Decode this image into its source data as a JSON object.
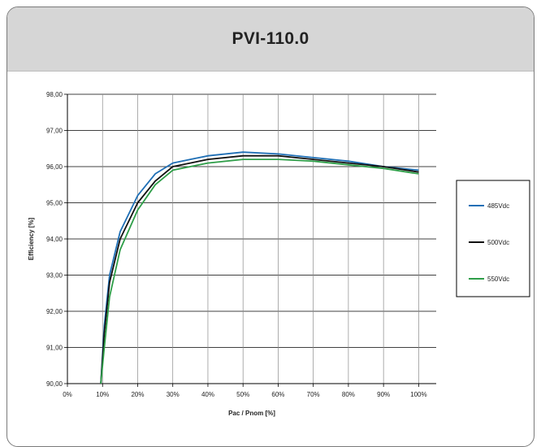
{
  "header": {
    "title": "PVI-110.0"
  },
  "chart_data": {
    "type": "line",
    "title": "PVI-110.0",
    "xlabel": "Pac / Pnom [%]",
    "ylabel": "Efficiency [%]",
    "xlim": [
      0,
      1.05
    ],
    "ylim": [
      90,
      98
    ],
    "x_ticks": [
      "0%",
      "10%",
      "20%",
      "30%",
      "40%",
      "50%",
      "60%",
      "70%",
      "80%",
      "90%",
      "100%"
    ],
    "y_ticks": [
      "90,00",
      "91,00",
      "92,00",
      "93,00",
      "94,00",
      "95,00",
      "96,00",
      "97,00",
      "98,00"
    ],
    "grid": true,
    "legend_position": "right",
    "series": [
      {
        "name": "485Vdc",
        "color": "#1f6fb5",
        "x": [
          0.095,
          0.105,
          0.12,
          0.15,
          0.2,
          0.25,
          0.3,
          0.35,
          0.4,
          0.5,
          0.6,
          0.7,
          0.8,
          0.9,
          1.0
        ],
        "y": [
          90.0,
          91.6,
          93.0,
          94.2,
          95.2,
          95.8,
          96.1,
          96.2,
          96.3,
          96.4,
          96.35,
          96.25,
          96.15,
          96.0,
          95.9
        ]
      },
      {
        "name": "500Vdc",
        "color": "#111111",
        "x": [
          0.095,
          0.105,
          0.12,
          0.15,
          0.2,
          0.25,
          0.3,
          0.35,
          0.4,
          0.5,
          0.6,
          0.7,
          0.8,
          0.9,
          1.0
        ],
        "y": [
          90.0,
          91.4,
          92.8,
          94.0,
          95.0,
          95.6,
          96.0,
          96.1,
          96.2,
          96.3,
          96.3,
          96.2,
          96.1,
          96.0,
          95.85
        ]
      },
      {
        "name": "550Vdc",
        "color": "#2e9e48",
        "x": [
          0.095,
          0.105,
          0.12,
          0.15,
          0.2,
          0.25,
          0.3,
          0.35,
          0.4,
          0.5,
          0.6,
          0.7,
          0.8,
          0.9,
          1.0
        ],
        "y": [
          90.0,
          91.0,
          92.4,
          93.7,
          94.8,
          95.5,
          95.9,
          96.0,
          96.1,
          96.2,
          96.2,
          96.15,
          96.05,
          95.95,
          95.8
        ]
      }
    ]
  }
}
